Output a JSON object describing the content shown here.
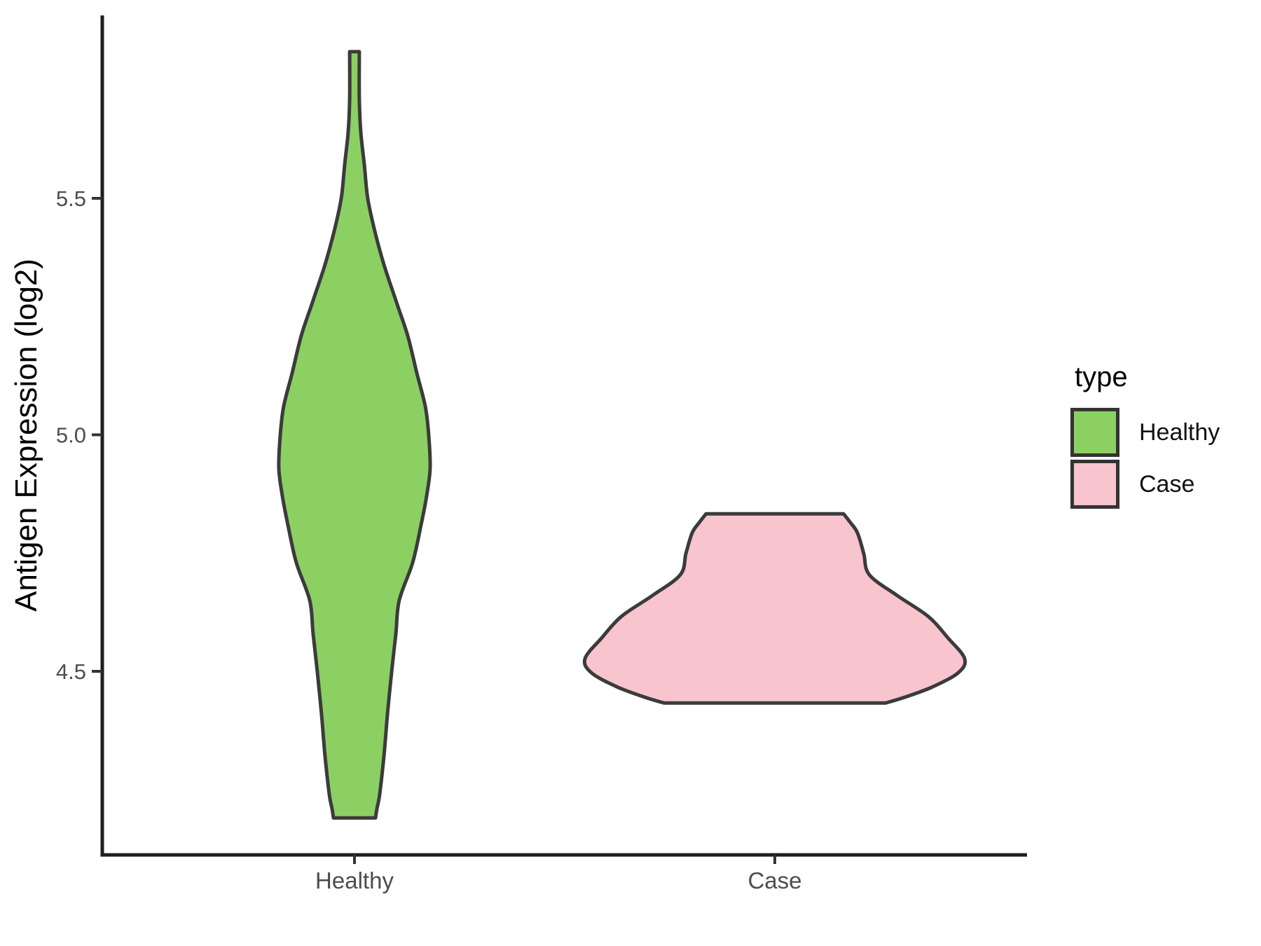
{
  "chart_data": {
    "type": "violin",
    "title": "",
    "xlabel": "",
    "ylabel": "Antigen Expression (log2)",
    "categories": [
      "Healthy",
      "Case"
    ],
    "ylim": [
      4.11,
      5.89
    ],
    "y_ticks": [
      {
        "value": 5.5,
        "label": "5.5"
      },
      {
        "value": 5.0,
        "label": "5.0"
      },
      {
        "value": 4.5,
        "label": "4.5"
      }
    ],
    "grid": false,
    "legend": {
      "title": "type",
      "position": "right"
    },
    "colors": {
      "healthy_fill": "#8CD064",
      "case_fill": "#F8C4CE",
      "outline": "#3B3B3B",
      "axis": "#1F1F1F",
      "tick_text": "#4D4D4D"
    },
    "series": [
      {
        "name": "Healthy",
        "fill": "#8CD064",
        "stroke": "#3B3B3B",
        "range": [
          4.19,
          5.81
        ],
        "peak_value": 4.93,
        "profile": [
          [
            5.81,
            0.023
          ],
          [
            5.71,
            0.023
          ],
          [
            5.64,
            0.03
          ],
          [
            5.57,
            0.047
          ],
          [
            5.5,
            0.063
          ],
          [
            5.43,
            0.097
          ],
          [
            5.36,
            0.14
          ],
          [
            5.28,
            0.2
          ],
          [
            5.21,
            0.253
          ],
          [
            5.13,
            0.297
          ],
          [
            5.06,
            0.337
          ],
          [
            5.0,
            0.353
          ],
          [
            4.93,
            0.36
          ],
          [
            4.87,
            0.343
          ],
          [
            4.81,
            0.317
          ],
          [
            4.73,
            0.277
          ],
          [
            4.65,
            0.213
          ],
          [
            4.58,
            0.197
          ],
          [
            4.5,
            0.177
          ],
          [
            4.41,
            0.157
          ],
          [
            4.32,
            0.14
          ],
          [
            4.24,
            0.12
          ],
          [
            4.21,
            0.107
          ],
          [
            4.19,
            0.1
          ]
        ]
      },
      {
        "name": "Case",
        "fill": "#F8C4CE",
        "stroke": "#3B3B3B",
        "range": [
          4.43,
          4.83
        ],
        "peak_value": 4.53,
        "profile": [
          [
            4.833,
            0.327
          ],
          [
            4.816,
            0.357
          ],
          [
            4.793,
            0.393
          ],
          [
            4.749,
            0.423
          ],
          [
            4.704,
            0.45
          ],
          [
            4.66,
            0.583
          ],
          [
            4.616,
            0.73
          ],
          [
            4.571,
            0.823
          ],
          [
            4.527,
            0.903
          ],
          [
            4.497,
            0.873
          ],
          [
            4.467,
            0.75
          ],
          [
            4.445,
            0.617
          ],
          [
            4.433,
            0.527
          ]
        ]
      }
    ]
  }
}
